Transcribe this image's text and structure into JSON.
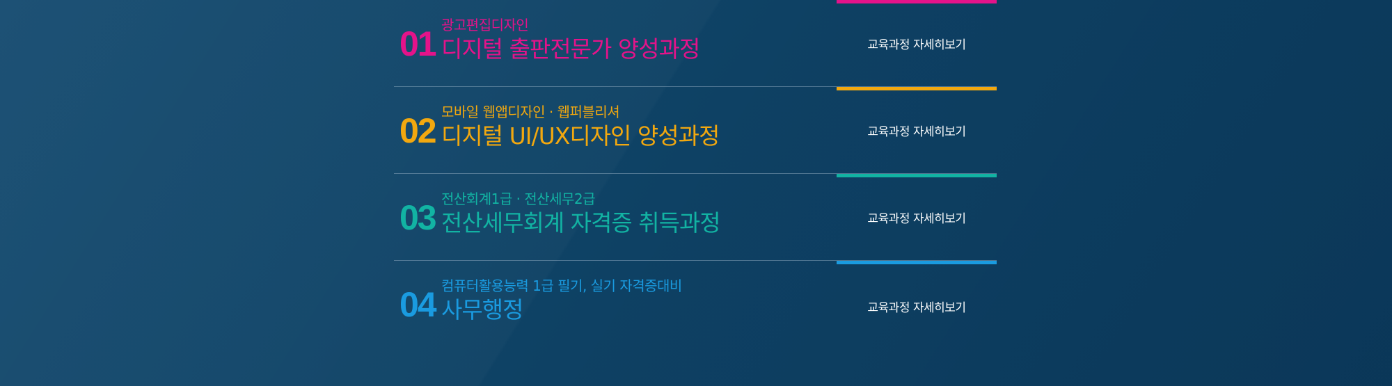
{
  "courses": [
    {
      "number": "01",
      "subtitle": "광고편집디자인",
      "title": "디지털 출판전문가 양성과정",
      "link_label": "교육과정 자세히보기",
      "color": "#e4138a"
    },
    {
      "number": "02",
      "subtitle": "모바일 웹앱디자인 · 웹퍼블리셔",
      "title": "디지털 UI/UX디자인 양성과정",
      "link_label": "교육과정 자세히보기",
      "color": "#f2a80f"
    },
    {
      "number": "03",
      "subtitle": "전산회계1급 · 전산세무2급",
      "title": "전산세무회계 자격증 취득과정",
      "link_label": "교육과정 자세히보기",
      "color": "#12b3a3"
    },
    {
      "number": "04",
      "subtitle": "컴퓨터활용능력 1급 필기, 실기 자격증대비",
      "title": "사무행정",
      "link_label": "교육과정 자세히보기",
      "color": "#1a9be0"
    }
  ]
}
